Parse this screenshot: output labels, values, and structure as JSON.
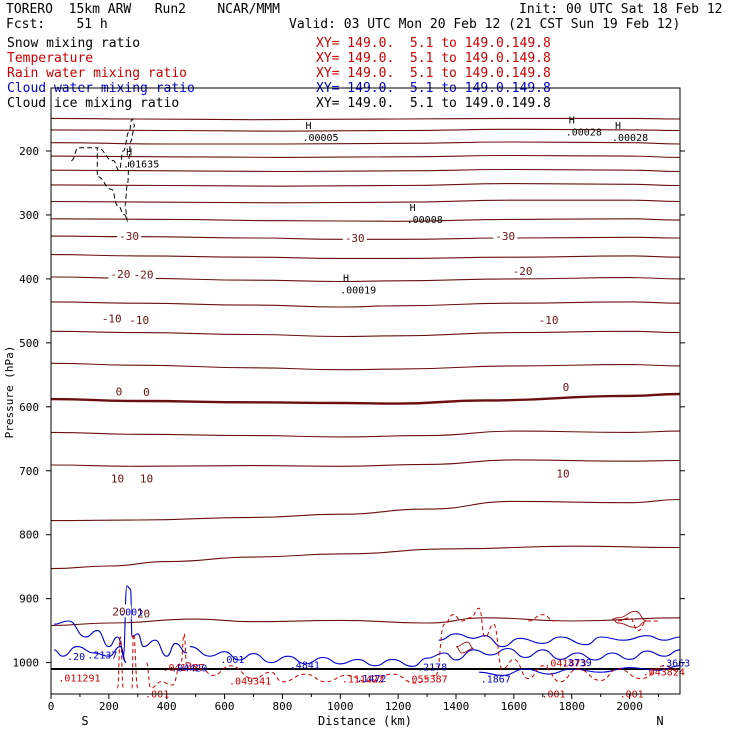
{
  "header": {
    "line1_left": "TORERO  15km ARW   Run2    NCAR/MMM",
    "line1_right": "Init: 00 UTC Sat 18 Feb 12",
    "line2_left": "Fcst:    51 h",
    "line2_right": "Valid: 03 UTC Mon 20 Feb 12 (21 CST Sun 19 Feb 12)"
  },
  "fields": [
    {
      "name": "Snow mixing ratio",
      "xy": "XY= 149.0.  5.1 to 149.0.149.8",
      "color": "#000000"
    },
    {
      "name": "Temperature",
      "xy": "XY= 149.0.  5.1 to 149.0.149.8",
      "color": "#cc0000"
    },
    {
      "name": "Rain water mixing ratio",
      "xy": "XY= 149.0.  5.1 to 149.0.149.8",
      "color": "#cc0000"
    },
    {
      "name": "Cloud water mixing ratio",
      "xy": "XY= 149.0.  5.1 to 149.0.149.8",
      "color": "#0000cc"
    },
    {
      "name": "Cloud ice mixing ratio",
      "xy": "XY= 149.0.  5.1 to 149.0.149.8",
      "color": "#000000"
    }
  ],
  "chart_data": {
    "type": "line",
    "xlabel": "Distance (km)",
    "ylabel": "Pressure (hPa)",
    "xlim": [
      0,
      2175
    ],
    "ylim": [
      140,
      1045
    ],
    "x_ticks": [
      0,
      200,
      400,
      600,
      800,
      1000,
      1200,
      1400,
      1600,
      1800,
      2000
    ],
    "y_ticks": [
      200,
      300,
      400,
      500,
      600,
      700,
      800,
      900,
      1000
    ],
    "x_end_labels": {
      "left": "S",
      "right": "N"
    },
    "y_scale": "linear (pressure increasing downward)",
    "isotherm_interval_C": 5,
    "isotherm_color": "#6b0f0f",
    "isotherms": [
      {
        "name": "p01",
        "x": [
          0,
          300,
          700,
          1200,
          1600,
          2000,
          2175
        ],
        "y": [
          149,
          150,
          151,
          150,
          149,
          149,
          150
        ]
      },
      {
        "name": "p02",
        "x": [
          0,
          400,
          800,
          1200,
          1600,
          2000,
          2175
        ],
        "y": [
          167,
          168,
          169,
          168,
          166,
          167,
          168
        ]
      },
      {
        "name": "p03",
        "x": [
          0,
          400,
          800,
          1200,
          1600,
          2000,
          2175
        ],
        "y": [
          187,
          189,
          189,
          188,
          186,
          187,
          189
        ]
      },
      {
        "name": "p04",
        "x": [
          0,
          400,
          800,
          1200,
          1600,
          2000,
          2175
        ],
        "y": [
          208,
          209,
          210,
          209,
          207,
          208,
          210
        ]
      },
      {
        "name": "p05",
        "x": [
          0,
          400,
          800,
          1200,
          1600,
          2000,
          2175
        ],
        "y": [
          230,
          231,
          232,
          231,
          229,
          230,
          232
        ]
      },
      {
        "name": "p06",
        "x": [
          0,
          400,
          800,
          1200,
          1600,
          2000,
          2175
        ],
        "y": [
          253,
          254,
          255,
          254,
          251,
          252,
          254
        ]
      },
      {
        "name": "p07",
        "x": [
          0,
          400,
          800,
          1200,
          1600,
          2000,
          2175
        ],
        "y": [
          279,
          280,
          281,
          280,
          277,
          277,
          279
        ]
      },
      {
        "name": "p08",
        "x": [
          0,
          400,
          800,
          1200,
          1600,
          2000,
          2175
        ],
        "y": [
          306,
          307,
          309,
          310,
          307,
          306,
          308
        ]
      },
      {
        "name": "m30",
        "value": -30,
        "x": [
          0,
          300,
          700,
          1000,
          1200,
          1600,
          2000,
          2175
        ],
        "y": [
          333,
          334,
          336,
          338,
          338,
          336,
          335,
          336
        ]
      },
      {
        "name": "m25",
        "value": -25,
        "x": [
          0,
          300,
          700,
          1000,
          1200,
          1600,
          2000,
          2175
        ],
        "y": [
          362,
          364,
          366,
          368,
          368,
          366,
          364,
          366
        ]
      },
      {
        "name": "m20",
        "value": -20,
        "x": [
          0,
          300,
          700,
          1000,
          1200,
          1600,
          2000,
          2175
        ],
        "y": [
          397,
          399,
          402,
          404,
          403,
          400,
          398,
          400
        ]
      },
      {
        "name": "m15",
        "value": -15,
        "x": [
          0,
          300,
          700,
          1000,
          1200,
          1600,
          2000,
          2175
        ],
        "y": [
          436,
          438,
          441,
          444,
          442,
          438,
          436,
          438
        ]
      },
      {
        "name": "m10",
        "value": -10,
        "x": [
          0,
          300,
          700,
          1000,
          1200,
          1600,
          2000,
          2175
        ],
        "y": [
          482,
          484,
          487,
          490,
          489,
          484,
          482,
          484
        ]
      },
      {
        "name": "m05",
        "value": -5,
        "x": [
          0,
          300,
          700,
          1000,
          1200,
          1600,
          2000,
          2175
        ],
        "y": [
          532,
          535,
          539,
          542,
          541,
          536,
          534,
          536
        ]
      },
      {
        "name": "z00",
        "value": 0,
        "x": [
          0,
          300,
          700,
          1000,
          1200,
          1500,
          2000,
          2175
        ],
        "y": [
          588,
          591,
          593,
          594,
          595,
          590,
          583,
          580
        ]
      },
      {
        "name": "p05w",
        "value": 5,
        "x": [
          0,
          300,
          700,
          1000,
          1300,
          1600,
          2000,
          2175
        ],
        "y": [
          640,
          643,
          645,
          647,
          645,
          638,
          640,
          638
        ]
      },
      {
        "name": "p10w",
        "value": 10,
        "x": [
          0,
          300,
          700,
          1000,
          1300,
          1600,
          2000,
          2175
        ],
        "y": [
          691,
          693,
          692,
          693,
          690,
          683,
          685,
          684
        ]
      },
      {
        "name": "p15w",
        "value": 15,
        "x": [
          0,
          300,
          700,
          1000,
          1300,
          1600,
          2000,
          2175
        ],
        "y": [
          778,
          777,
          773,
          768,
          760,
          748,
          750,
          745
        ]
      },
      {
        "name": "p20w",
        "value": 20,
        "x": [
          0,
          200,
          400,
          700,
          1000,
          1400,
          1800,
          2175
        ],
        "y": [
          853,
          849,
          842,
          835,
          830,
          822,
          818,
          820
        ]
      },
      {
        "name": "p25w",
        "value": 25,
        "x": [
          0,
          200,
          500,
          700,
          1000,
          1300,
          1500,
          1800,
          2175
        ],
        "y": [
          942,
          938,
          932,
          936,
          934,
          938,
          930,
          935,
          930
        ]
      }
    ],
    "temperature_labels": [
      {
        "text": "-30",
        "x": 270,
        "y": 333
      },
      {
        "text": "-30",
        "x": 1050,
        "y": 336
      },
      {
        "text": "-30",
        "x": 1570,
        "y": 333
      },
      {
        "text": "-20",
        "x": 240,
        "y": 392
      },
      {
        "text": "-20",
        "x": 320,
        "y": 393
      },
      {
        "text": "-20",
        "x": 1630,
        "y": 388
      },
      {
        "text": "-10",
        "x": 210,
        "y": 462
      },
      {
        "text": "-10",
        "x": 305,
        "y": 464
      },
      {
        "text": "-10",
        "x": 1720,
        "y": 464
      },
      {
        "text": "0",
        "x": 235,
        "y": 576
      },
      {
        "text": "0",
        "x": 330,
        "y": 577
      },
      {
        "text": "0",
        "x": 1780,
        "y": 569
      },
      {
        "text": "10",
        "x": 230,
        "y": 712
      },
      {
        "text": "10",
        "x": 330,
        "y": 712
      },
      {
        "text": "10",
        "x": 1770,
        "y": 704
      },
      {
        "text": "20",
        "x": 235,
        "y": 920
      },
      {
        "text": "20",
        "x": 320,
        "y": 923
      }
    ],
    "ice_maxima": [
      {
        "value": ".00005",
        "x": 890,
        "y": 172
      },
      {
        "value": ".00028",
        "x": 1960,
        "y": 172
      },
      {
        "value": ".00028",
        "x": 1800,
        "y": 163
      },
      {
        "value": ".01635",
        "x": 270,
        "y": 213
      },
      {
        "value": ".00008",
        "x": 1250,
        "y": 300
      },
      {
        "value": ".00019",
        "x": 1020,
        "y": 410
      }
    ],
    "cloud_labels": [
      {
        "text": ".001",
        "x": 270,
        "y": 920,
        "color": "#0000cc"
      },
      {
        "text": ".20",
        "x": 90,
        "y": 990,
        "color": "#0000cc"
      },
      {
        "text": ".2137",
        "x": 160,
        "y": 987,
        "color": "#0000cc"
      },
      {
        "text": ".011291",
        "x": 60,
        "y": 1023,
        "color": "#cc0000"
      },
      {
        "text": ".041427",
        "x": 420,
        "y": 1007,
        "color": "#cc0000"
      },
      {
        "text": ".04420",
        "x": 450,
        "y": 1008,
        "color": "#0000cc"
      },
      {
        "text": ".001",
        "x": 620,
        "y": 994,
        "color": "#0000cc"
      },
      {
        "text": ".049341",
        "x": 650,
        "y": 1028,
        "color": "#cc0000"
      },
      {
        "text": ".4841",
        "x": 860,
        "y": 1003,
        "color": "#0000cc"
      },
      {
        "text": ".111422",
        "x": 1040,
        "y": 1025,
        "color": "#cc0000"
      },
      {
        "text": ".1472",
        "x": 1090,
        "y": 1024,
        "color": "#0000cc"
      },
      {
        "text": ".2178",
        "x": 1300,
        "y": 1006,
        "color": "#0000cc"
      },
      {
        "text": ".055387",
        "x": 1260,
        "y": 1025,
        "color": "#cc0000"
      },
      {
        "text": ".1867",
        "x": 1520,
        "y": 1025,
        "color": "#0000cc"
      },
      {
        "text": ".041873",
        "x": 1740,
        "y": 1000,
        "color": "#cc0000"
      },
      {
        "text": ".3739",
        "x": 1800,
        "y": 999,
        "color": "#0000cc"
      },
      {
        "text": ".043824",
        "x": 2080,
        "y": 1014,
        "color": "#cc0000"
      },
      {
        "text": ".3663",
        "x": 2140,
        "y": 1000,
        "color": "#0000cc"
      },
      {
        "text": ".001",
        "x": 360,
        "y": 1048,
        "color": "#cc0000"
      },
      {
        "text": ".001",
        "x": 1730,
        "y": 1048,
        "color": "#cc0000"
      },
      {
        "text": ".001",
        "x": 2000,
        "y": 1048,
        "color": "#cc0000"
      }
    ],
    "ground_pressure_hPa": 1010
  }
}
